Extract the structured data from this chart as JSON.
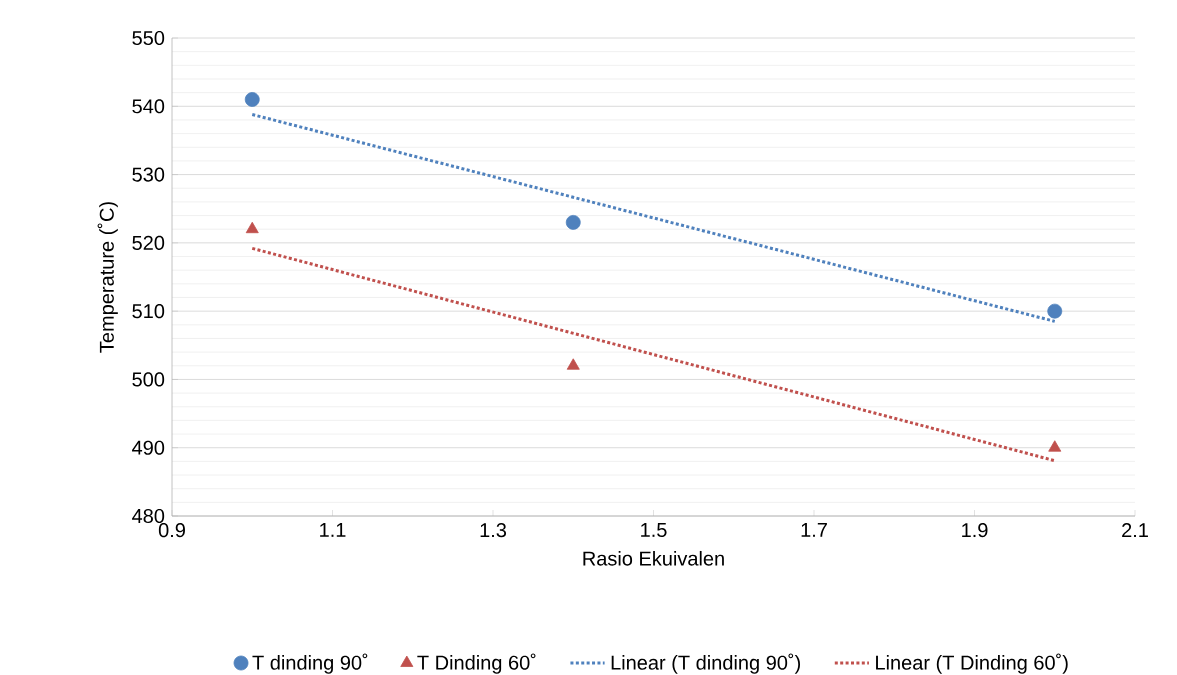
{
  "chart_data": {
    "type": "scatter",
    "xlabel": "Rasio Ekuivalen",
    "ylabel": "Temperature (˚C)",
    "xlim": [
      0.9,
      2.1
    ],
    "xticks": [
      0.9,
      1.1,
      1.3,
      1.5,
      1.7,
      1.9,
      2.1
    ],
    "ylim": [
      480,
      550
    ],
    "yticks": [
      480,
      490,
      500,
      510,
      520,
      530,
      540,
      550
    ],
    "grid": "y",
    "legend": "bottom",
    "series": [
      {
        "name": "T dinding 90˚",
        "marker": "circle",
        "color": "#4f81bd",
        "x": [
          1.0,
          1.4,
          2.0
        ],
        "values": [
          541,
          523,
          510
        ]
      },
      {
        "name": "T Dinding 60˚",
        "marker": "triangle",
        "color": "#c0504d",
        "x": [
          1.0,
          1.4,
          2.0
        ],
        "values": [
          522,
          502,
          490
        ]
      },
      {
        "name": "Linear (T dinding 90˚)",
        "type": "line",
        "line_style": "dotted",
        "color": "#4f81bd",
        "x": [
          1.0,
          2.0
        ],
        "values": [
          538.8,
          508.5
        ]
      },
      {
        "name": "Linear (T Dinding 60˚)",
        "type": "line",
        "line_style": "dotted",
        "color": "#c0504d",
        "x": [
          1.0,
          2.0
        ],
        "values": [
          519.2,
          488.1
        ]
      }
    ]
  }
}
